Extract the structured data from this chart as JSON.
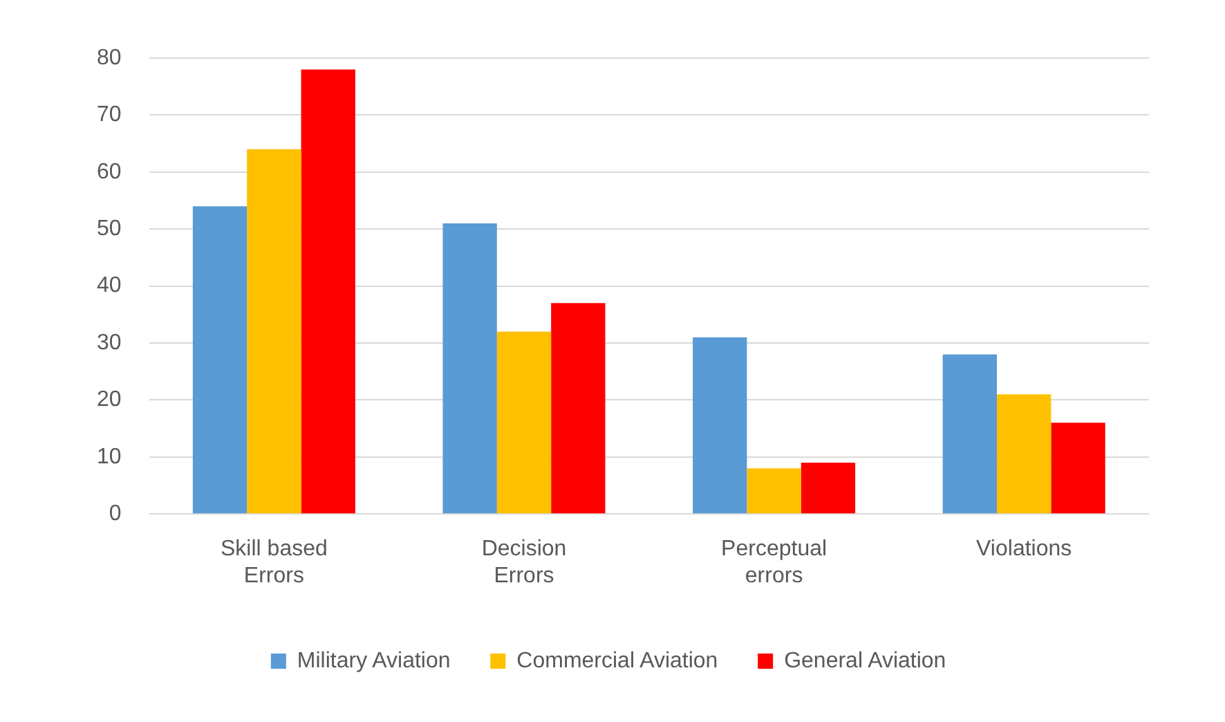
{
  "chart_data": {
    "type": "bar",
    "categories": [
      "Skill based Errors",
      "Decision Errors",
      "Perceptual errors",
      "Violations"
    ],
    "series": [
      {
        "name": "Military Aviation",
        "color": "#5b9bd5",
        "values": [
          54,
          51,
          31,
          28
        ]
      },
      {
        "name": "Commercial Aviation",
        "color": "#ffc000",
        "values": [
          64,
          32,
          8,
          21
        ]
      },
      {
        "name": "General Aviation",
        "color": "#ff0000",
        "values": [
          78,
          37,
          9,
          16
        ]
      }
    ],
    "ylim": [
      0,
      80
    ],
    "yticks": [
      0,
      10,
      20,
      30,
      40,
      50,
      60,
      70,
      80
    ],
    "grid": "y",
    "legend": "bottom"
  }
}
